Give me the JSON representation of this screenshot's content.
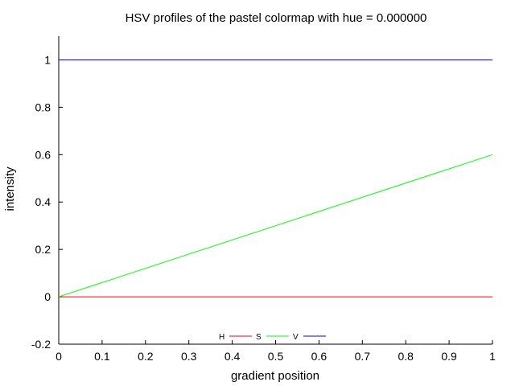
{
  "chart_data": {
    "type": "line",
    "title": "HSV profiles of the pastel colormap with hue = 0.000000",
    "xlabel": "gradient position",
    "ylabel": "intensity",
    "xlim": [
      0,
      1
    ],
    "ylim": [
      -0.2,
      1.1
    ],
    "x_ticks": [
      "0",
      "0.1",
      "0.2",
      "0.3",
      "0.4",
      "0.5",
      "0.6",
      "0.7",
      "0.8",
      "0.9",
      "1"
    ],
    "y_ticks": [
      "-0.2",
      "0",
      "0.2",
      "0.4",
      "0.6",
      "0.8",
      "1"
    ],
    "grid": false,
    "legend_position": "bottom-center",
    "series": [
      {
        "name": "H",
        "color": "#ff0000",
        "x": [
          0,
          1
        ],
        "y": [
          0,
          0
        ]
      },
      {
        "name": "S",
        "color": "#00ff00",
        "x": [
          0,
          1
        ],
        "y": [
          0,
          0.6
        ]
      },
      {
        "name": "V",
        "color": "#0000ff",
        "x": [
          0,
          1
        ],
        "y": [
          1,
          1
        ]
      }
    ]
  }
}
